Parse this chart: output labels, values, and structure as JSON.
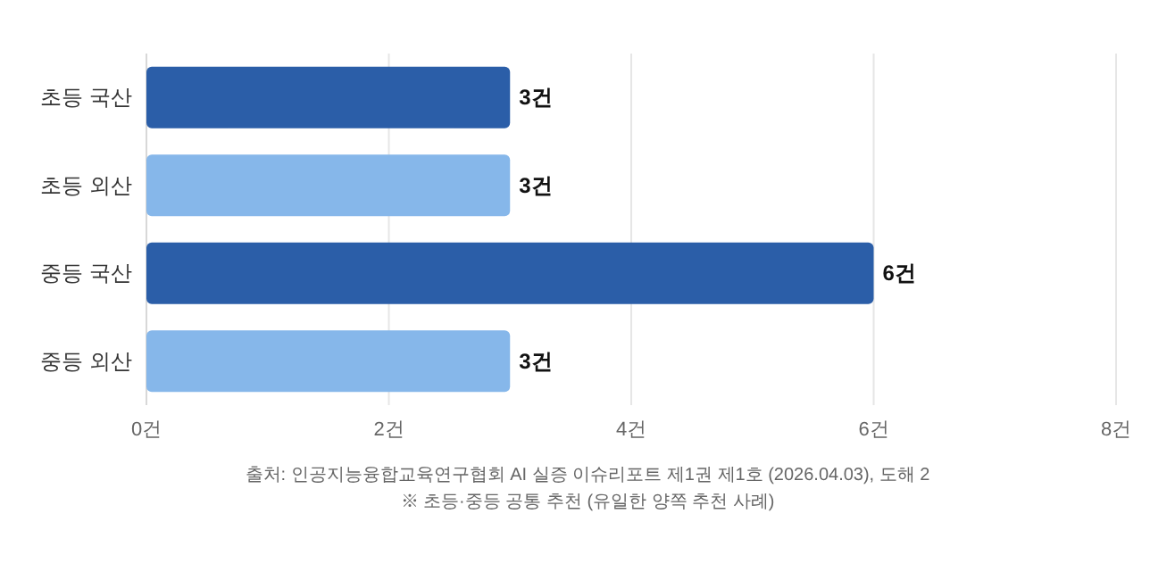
{
  "chart_data": {
    "type": "bar",
    "orientation": "horizontal",
    "categories": [
      "초등 국산",
      "초등 외산",
      "중등 국산",
      "중등 외산"
    ],
    "values": [
      3,
      3,
      6,
      3
    ],
    "colors": [
      "#2b5ea8",
      "#86b7ea",
      "#2b5ea8",
      "#86b7ea"
    ],
    "value_labels": [
      "3건",
      "3건",
      "6건",
      "3건"
    ],
    "xlim": [
      0,
      8
    ],
    "xticks": [
      {
        "value": 0,
        "label": "0건"
      },
      {
        "value": 2,
        "label": "2건"
      },
      {
        "value": 4,
        "label": "4건"
      },
      {
        "value": 6,
        "label": "6건"
      },
      {
        "value": 8,
        "label": "8건"
      }
    ],
    "grid": "x",
    "annotations": [
      "출처: 인공지능융합교육연구협회 AI 실증 이슈리포트 제1권 제1호 (2026.04.03), 도해 2",
      "※ 초등·중등 공통 추천 (유일한 양쪽 추천 사례)"
    ]
  }
}
